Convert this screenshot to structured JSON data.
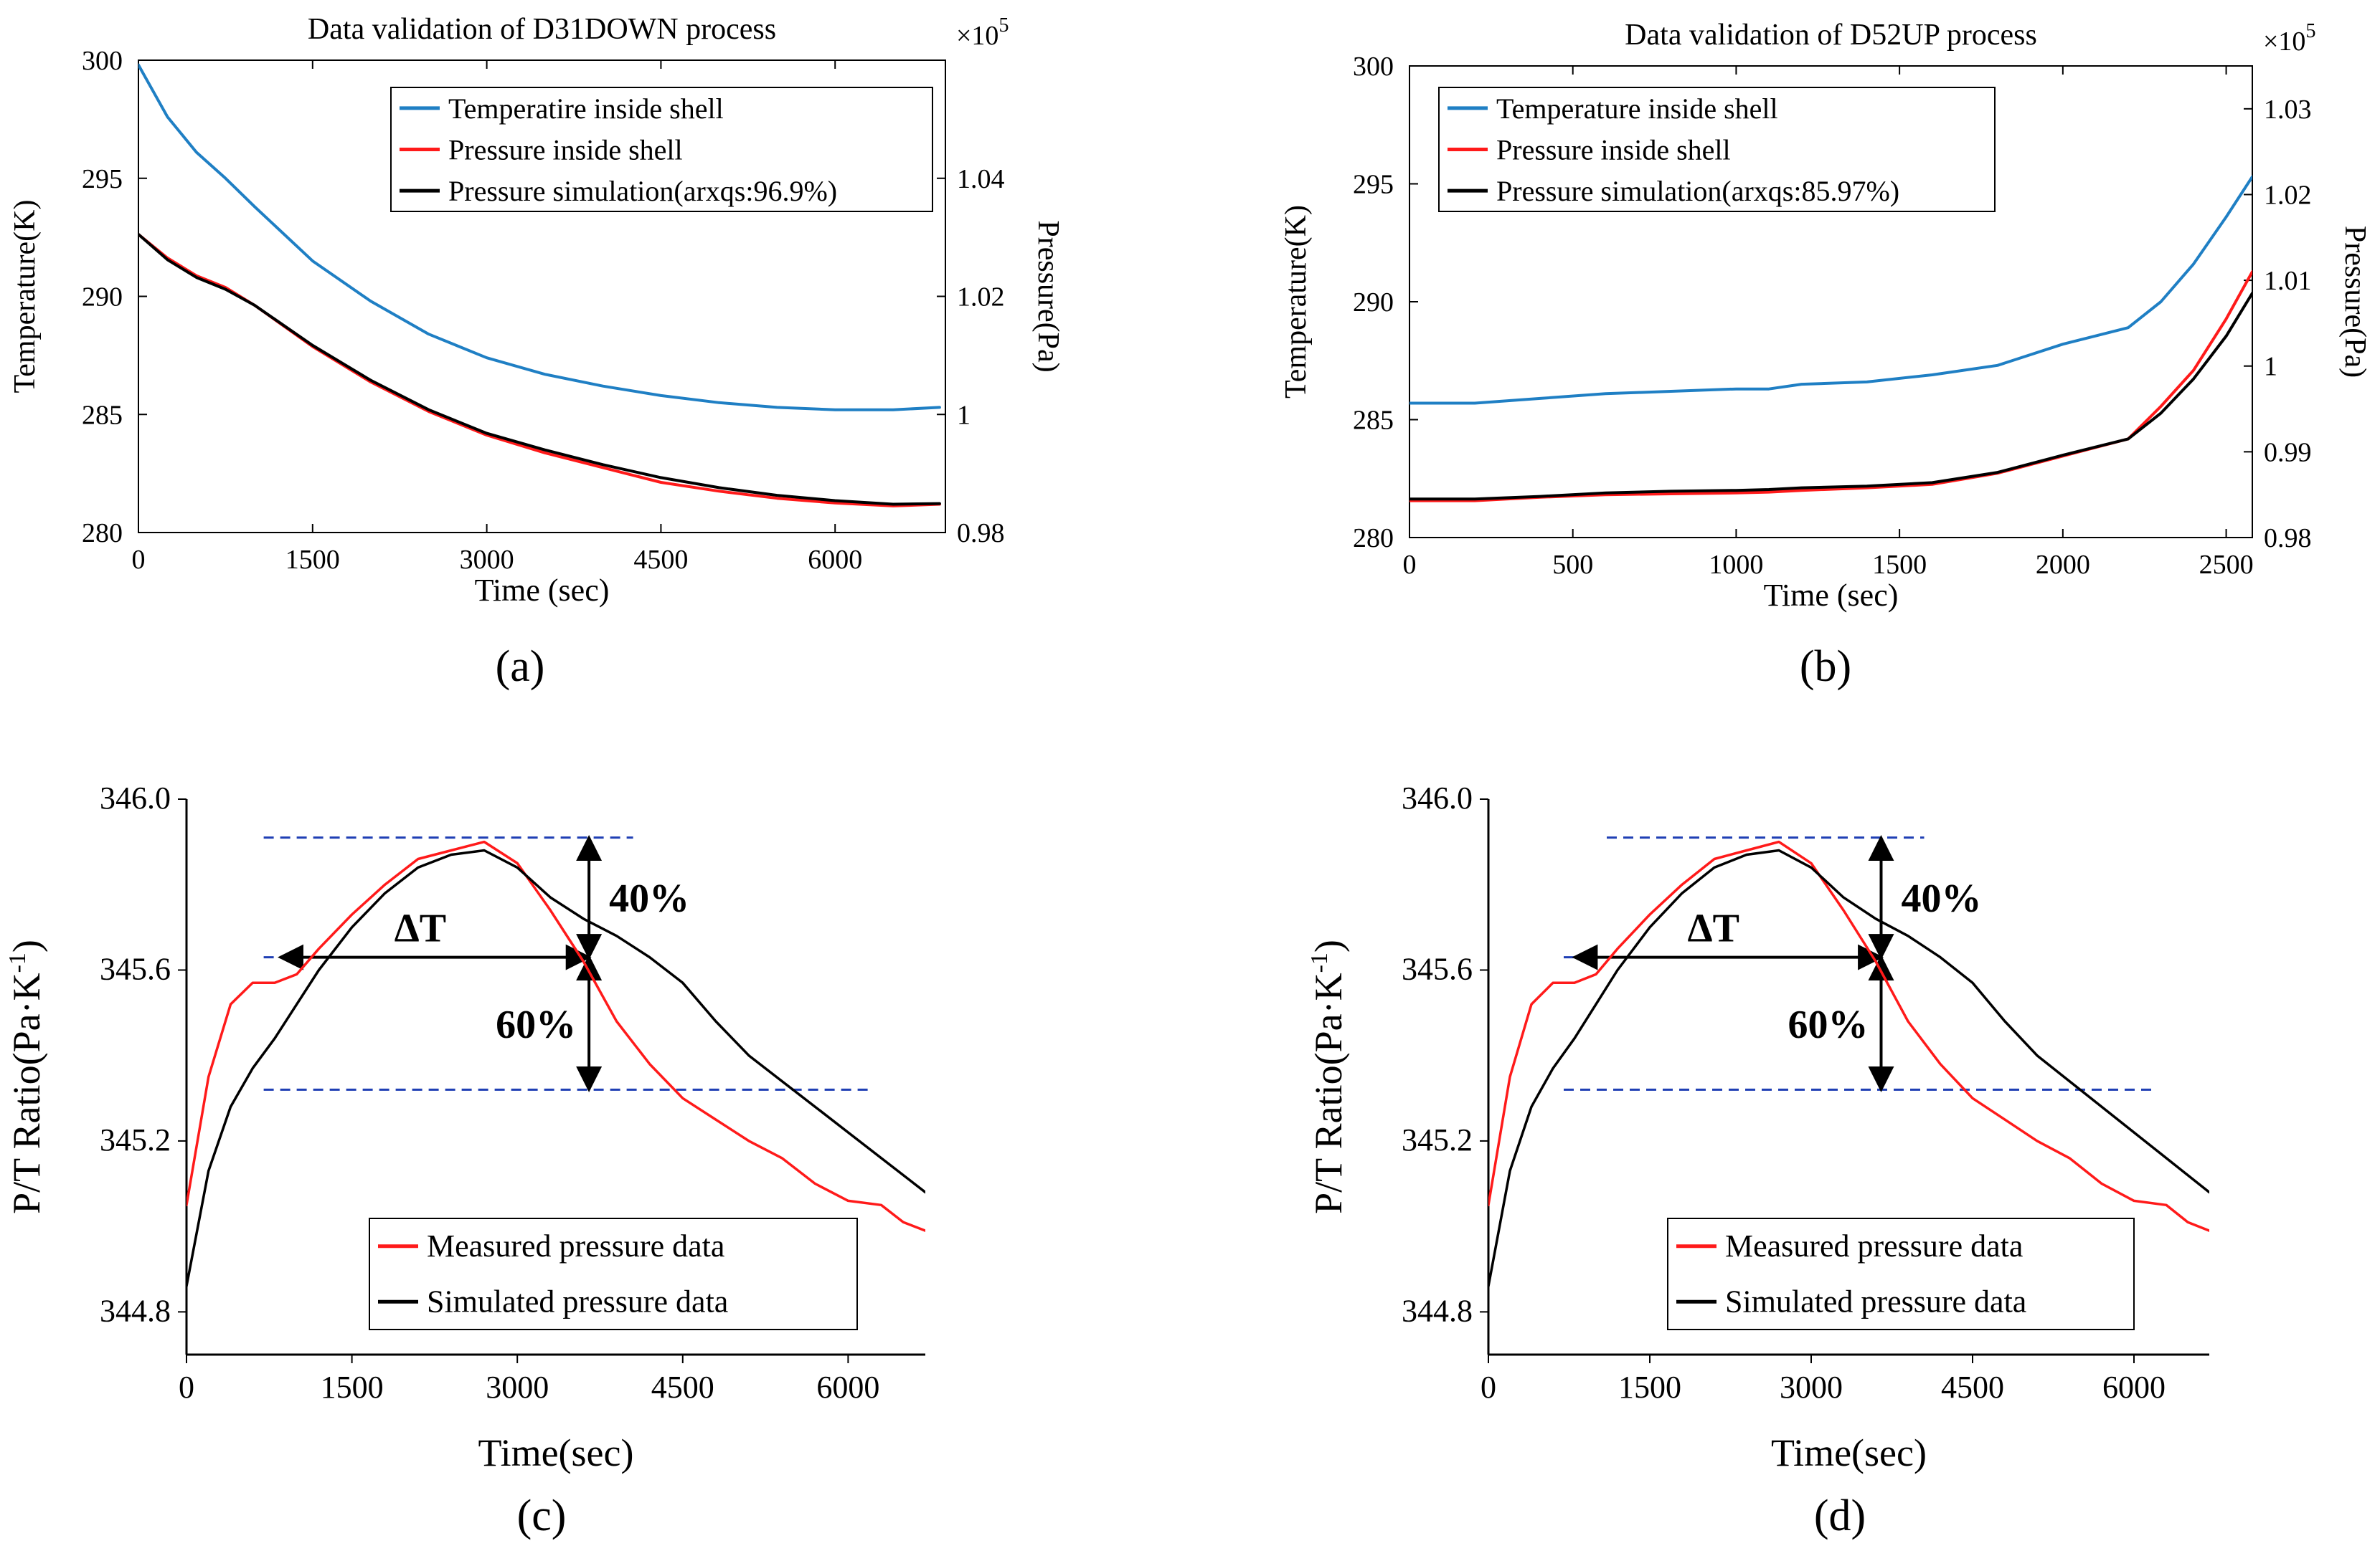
{
  "figure": {
    "captions": [
      "(a)",
      "(b)",
      "(c)",
      "(d)"
    ]
  },
  "colors": {
    "temperature": "#1f7fc4",
    "measured": "#ff1a1a",
    "simulated": "#000000",
    "guide": "#1f3fb4"
  },
  "chart_data": [
    {
      "id": "a",
      "type": "line",
      "title": "Data validation of D31DOWN process",
      "xlabel": "Time (sec)",
      "ylabel": "Temperature(K)",
      "y2label": "Pressure(Pa)",
      "y2_multiplier": "×10^5",
      "y2_exponent": "5",
      "xlim": [
        0,
        6950
      ],
      "ylim": [
        280,
        300
      ],
      "y2lim": [
        0.98,
        1.06
      ],
      "xticks": [
        0,
        1500,
        3000,
        4500,
        6000
      ],
      "yticks": [
        280,
        285,
        290,
        295,
        300
      ],
      "y2ticks": [
        0.98,
        1,
        1.02,
        1.04
      ],
      "x_tick_labels": [
        "0",
        "1500",
        "3000",
        "4500",
        "6000"
      ],
      "y_tick_labels": [
        "280",
        "285",
        "290",
        "295",
        "300"
      ],
      "y2_tick_labels": [
        "0.98",
        "1",
        "1.02",
        "1.04"
      ],
      "legend_position": "top-right",
      "series": [
        {
          "name": "Temperatire inside shell",
          "axis": "left",
          "color": "#1f7fc4",
          "x": [
            0,
            250,
            500,
            750,
            1000,
            1500,
            2000,
            2500,
            3000,
            3500,
            4000,
            4500,
            5000,
            5500,
            6000,
            6500,
            6900
          ],
          "y": [
            299.8,
            297.6,
            296.1,
            295.0,
            293.8,
            291.5,
            289.8,
            288.4,
            287.4,
            286.7,
            286.2,
            285.8,
            285.5,
            285.3,
            285.2,
            285.2,
            285.3
          ]
        },
        {
          "name": "Pressure inside shell",
          "axis": "right",
          "color": "#ff1a1a",
          "x": [
            0,
            250,
            500,
            750,
            1000,
            1500,
            2000,
            2500,
            3000,
            3500,
            4000,
            4500,
            5000,
            5500,
            6000,
            6500,
            6900
          ],
          "y": [
            1.0305,
            1.0265,
            1.0235,
            1.0215,
            1.0185,
            1.0115,
            1.0055,
            1.0005,
            0.9965,
            0.9935,
            0.991,
            0.9885,
            0.987,
            0.9858,
            0.985,
            0.9845,
            0.9848
          ]
        },
        {
          "name": "Pressure simulation(arxqs:96.9%)",
          "axis": "right",
          "color": "#000000",
          "x": [
            0,
            250,
            500,
            750,
            1000,
            1500,
            2000,
            2500,
            3000,
            3500,
            4000,
            4500,
            5000,
            5500,
            6000,
            6500,
            6900
          ],
          "y": [
            1.0305,
            1.0262,
            1.0232,
            1.0212,
            1.0185,
            1.0117,
            1.0058,
            1.0008,
            0.9968,
            0.994,
            0.9915,
            0.9893,
            0.9876,
            0.9863,
            0.9854,
            0.9848,
            0.9849
          ]
        }
      ]
    },
    {
      "id": "b",
      "type": "line",
      "title": "Data validation of D52UP process",
      "xlabel": "Time (sec)",
      "ylabel": "Temperature(K)",
      "y2label": "Pressure(Pa)",
      "y2_multiplier": "×10^5",
      "y2_exponent": "5",
      "xlim": [
        0,
        2580
      ],
      "ylim": [
        280,
        300
      ],
      "y2lim": [
        0.98,
        1.035
      ],
      "xticks": [
        0,
        500,
        1000,
        1500,
        2000,
        2500
      ],
      "yticks": [
        280,
        285,
        290,
        295,
        300
      ],
      "y2ticks": [
        0.98,
        0.99,
        1,
        1.01,
        1.02,
        1.03
      ],
      "x_tick_labels": [
        "0",
        "500",
        "1000",
        "1500",
        "2000",
        "2500"
      ],
      "y_tick_labels": [
        "280",
        "285",
        "290",
        "295",
        "300"
      ],
      "y2_tick_labels": [
        "0.98",
        "0.99",
        "1",
        "1.01",
        "1.02",
        "1.03"
      ],
      "legend_position": "top-left",
      "series": [
        {
          "name": "Temperature inside shell",
          "axis": "left",
          "color": "#1f7fc4",
          "x": [
            0,
            200,
            400,
            600,
            800,
            1000,
            1100,
            1200,
            1400,
            1600,
            1800,
            2000,
            2200,
            2300,
            2400,
            2500,
            2580
          ],
          "y": [
            285.7,
            285.7,
            285.9,
            286.1,
            286.2,
            286.3,
            286.3,
            286.5,
            286.6,
            286.9,
            287.3,
            288.2,
            288.9,
            290.0,
            291.6,
            293.6,
            295.3
          ]
        },
        {
          "name": "Pressure inside shell",
          "axis": "right",
          "color": "#ff1a1a",
          "x": [
            0,
            200,
            400,
            600,
            800,
            1000,
            1100,
            1200,
            1400,
            1600,
            1800,
            2000,
            2200,
            2300,
            2400,
            2500,
            2580
          ],
          "y": [
            0.9843,
            0.9843,
            0.9847,
            0.985,
            0.9851,
            0.9852,
            0.9853,
            0.9855,
            0.9858,
            0.9862,
            0.9875,
            0.9895,
            0.9915,
            0.9953,
            0.9995,
            1.0055,
            1.011
          ]
        },
        {
          "name": "Pressure simulation(arxqs:85.97%)",
          "axis": "right",
          "color": "#000000",
          "x": [
            0,
            200,
            400,
            600,
            800,
            1000,
            1100,
            1200,
            1400,
            1600,
            1800,
            2000,
            2200,
            2300,
            2400,
            2500,
            2580
          ],
          "y": [
            0.9845,
            0.9845,
            0.9848,
            0.9852,
            0.9854,
            0.9855,
            0.9856,
            0.9858,
            0.986,
            0.9864,
            0.9876,
            0.9896,
            0.9915,
            0.9945,
            0.9985,
            1.0035,
            1.0085
          ]
        }
      ]
    },
    {
      "id": "c",
      "type": "line",
      "title": "",
      "xlabel": "Time(sec)",
      "ylabel": "P/T Ratio(Pa·K",
      "ylabel_sup": "-1",
      "ylabel_end": ")",
      "xlim": [
        0,
        6700
      ],
      "ylim": [
        344.7,
        346.0
      ],
      "xticks": [
        0,
        1500,
        3000,
        4500,
        6000
      ],
      "yticks": [
        344.8,
        345.2,
        345.6,
        346.0
      ],
      "x_tick_labels": [
        "0",
        "1500",
        "3000",
        "4500",
        "6000"
      ],
      "y_tick_labels": [
        "344.8",
        "345.2",
        "345.6",
        "346.0"
      ],
      "legend_position": "bottom-center",
      "annotations": {
        "delta_label": "ΔT",
        "upper_pct": "40%",
        "lower_pct": "60%"
      },
      "guides": {
        "top": {
          "x": [
            700,
            4050
          ],
          "y": 345.91
        },
        "mid": {
          "x": [
            700,
            3650
          ],
          "y": 345.63
        },
        "bottom": {
          "x": [
            700,
            6200
          ],
          "y": 345.32
        }
      },
      "series": [
        {
          "name": "Measured pressure data",
          "color": "#ff1a1a",
          "x": [
            0,
            200,
            400,
            600,
            800,
            1000,
            1200,
            1500,
            1800,
            2100,
            2400,
            2700,
            3000,
            3300,
            3600,
            3900,
            4200,
            4500,
            4800,
            5100,
            5400,
            5700,
            6000,
            6300,
            6500,
            6700
          ],
          "y": [
            345.05,
            345.35,
            345.52,
            345.57,
            345.57,
            345.59,
            345.65,
            345.73,
            345.8,
            345.86,
            345.88,
            345.9,
            345.85,
            345.74,
            345.62,
            345.48,
            345.38,
            345.3,
            345.25,
            345.2,
            345.16,
            345.1,
            345.06,
            345.05,
            345.01,
            344.99
          ]
        },
        {
          "name": "Simulated pressure data",
          "color": "#000000",
          "x": [
            0,
            200,
            400,
            600,
            800,
            1000,
            1200,
            1500,
            1800,
            2100,
            2400,
            2700,
            3000,
            3300,
            3600,
            3900,
            4200,
            4500,
            4800,
            5100,
            5400,
            5700,
            6000,
            6300,
            6500,
            6700
          ],
          "y": [
            344.86,
            345.13,
            345.28,
            345.37,
            345.44,
            345.52,
            345.6,
            345.7,
            345.78,
            345.84,
            345.87,
            345.88,
            345.84,
            345.77,
            345.72,
            345.68,
            345.63,
            345.57,
            345.48,
            345.4,
            345.34,
            345.28,
            345.22,
            345.16,
            345.12,
            345.08
          ]
        }
      ]
    },
    {
      "id": "d",
      "type": "line",
      "title": "",
      "xlabel": "Time(sec)",
      "ylabel": "P/T Ratio(Pa·K",
      "ylabel_sup": "-1",
      "ylabel_end": ")",
      "xlim": [
        0,
        6700
      ],
      "ylim": [
        344.7,
        346.0
      ],
      "xticks": [
        0,
        1500,
        3000,
        4500,
        6000
      ],
      "yticks": [
        344.8,
        345.2,
        345.6,
        346.0
      ],
      "x_tick_labels": [
        "0",
        "1500",
        "3000",
        "4500",
        "6000"
      ],
      "y_tick_labels": [
        "344.8",
        "345.2",
        "345.6",
        "346.0"
      ],
      "legend_position": "bottom-center",
      "annotations": {
        "delta_label": "ΔT",
        "upper_pct": "40%",
        "lower_pct": "60%"
      },
      "guides": {
        "top": {
          "x": [
            1100,
            4050
          ],
          "y": 345.91
        },
        "mid": {
          "x": [
            700,
            3650
          ],
          "y": 345.63
        },
        "bottom": {
          "x": [
            700,
            6200
          ],
          "y": 345.32
        }
      },
      "series": [
        {
          "name": "Measured pressure data",
          "color": "#ff1a1a",
          "x": [
            0,
            200,
            400,
            600,
            800,
            1000,
            1200,
            1500,
            1800,
            2100,
            2400,
            2700,
            3000,
            3300,
            3600,
            3900,
            4200,
            4500,
            4800,
            5100,
            5400,
            5700,
            6000,
            6300,
            6500,
            6700
          ],
          "y": [
            345.05,
            345.35,
            345.52,
            345.57,
            345.57,
            345.59,
            345.65,
            345.73,
            345.8,
            345.86,
            345.88,
            345.9,
            345.85,
            345.74,
            345.62,
            345.48,
            345.38,
            345.3,
            345.25,
            345.2,
            345.16,
            345.1,
            345.06,
            345.05,
            345.01,
            344.99
          ]
        },
        {
          "name": "Simulated pressure data",
          "color": "#000000",
          "x": [
            0,
            200,
            400,
            600,
            800,
            1000,
            1200,
            1500,
            1800,
            2100,
            2400,
            2700,
            3000,
            3300,
            3600,
            3900,
            4200,
            4500,
            4800,
            5100,
            5400,
            5700,
            6000,
            6300,
            6500,
            6700
          ],
          "y": [
            344.86,
            345.13,
            345.28,
            345.37,
            345.44,
            345.52,
            345.6,
            345.7,
            345.78,
            345.84,
            345.87,
            345.88,
            345.84,
            345.77,
            345.72,
            345.68,
            345.63,
            345.57,
            345.48,
            345.4,
            345.34,
            345.28,
            345.22,
            345.16,
            345.12,
            345.08
          ]
        }
      ]
    }
  ]
}
